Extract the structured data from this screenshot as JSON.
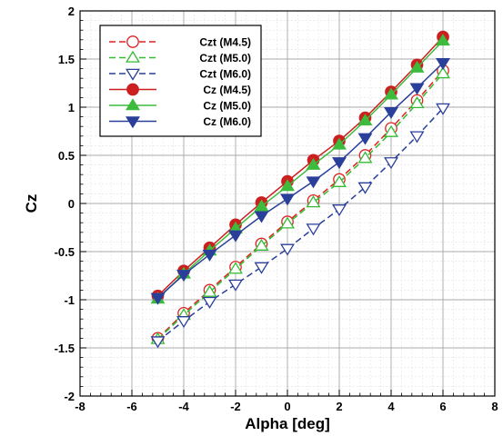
{
  "chart_data": {
    "type": "line",
    "xlabel": "Alpha [deg]",
    "ylabel": "Cz",
    "xlim": [
      -8,
      8
    ],
    "ylim": [
      -2,
      2
    ],
    "x_ticks": [
      "-8",
      "-6",
      "-4",
      "-2",
      "0",
      "2",
      "4",
      "6",
      "8"
    ],
    "y_ticks": [
      "-2",
      "-1.5",
      "-1",
      "-0.5",
      "0",
      "0.5",
      "1",
      "1.5",
      "2"
    ],
    "grid": true,
    "minor_grid": true,
    "legend_position": "top-left",
    "x": [
      -5,
      -4,
      -3,
      -2,
      -1,
      0,
      1,
      2,
      3,
      4,
      5,
      6
    ],
    "series": [
      {
        "name": "Czt (M4.5)",
        "color": "#e02020",
        "line": "dashed",
        "marker": "circle-open",
        "values": [
          -1.4,
          -1.14,
          -0.9,
          -0.66,
          -0.42,
          -0.19,
          0.03,
          0.25,
          0.5,
          0.78,
          1.07,
          1.38
        ]
      },
      {
        "name": "Czt (M5.0)",
        "color": "#33bb33",
        "line": "dashed",
        "marker": "triangle-up-open",
        "values": [
          -1.41,
          -1.16,
          -0.92,
          -0.68,
          -0.44,
          -0.21,
          0.01,
          0.22,
          0.47,
          0.74,
          1.04,
          1.35
        ]
      },
      {
        "name": "Czt (M6.0)",
        "color": "#2a3f9a",
        "line": "dashed",
        "marker": "triangle-down-open",
        "values": [
          -1.43,
          -1.22,
          -1.02,
          -0.84,
          -0.66,
          -0.47,
          -0.26,
          -0.06,
          0.17,
          0.43,
          0.7,
          0.99
        ]
      },
      {
        "name": "Cz (M4.5)",
        "color": "#cc1f1f",
        "line": "solid",
        "marker": "circle-filled",
        "values": [
          -0.96,
          -0.7,
          -0.46,
          -0.22,
          0.01,
          0.23,
          0.45,
          0.65,
          0.89,
          1.16,
          1.44,
          1.73
        ]
      },
      {
        "name": "Cz (M5.0)",
        "color": "#3dbb3d",
        "line": "solid",
        "marker": "triangle-up-filled",
        "values": [
          -0.99,
          -0.73,
          -0.49,
          -0.26,
          -0.03,
          0.18,
          0.4,
          0.61,
          0.86,
          1.13,
          1.41,
          1.69
        ]
      },
      {
        "name": "Cz (M6.0)",
        "color": "#2a3f9a",
        "line": "solid",
        "marker": "triangle-down-filled",
        "values": [
          -0.98,
          -0.74,
          -0.53,
          -0.33,
          -0.13,
          0.05,
          0.23,
          0.43,
          0.68,
          0.95,
          1.2,
          1.46
        ]
      }
    ]
  }
}
